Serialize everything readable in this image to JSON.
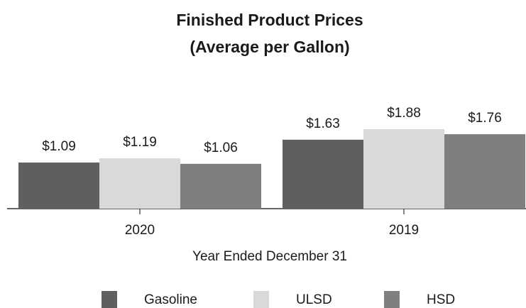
{
  "chart_data": {
    "type": "bar",
    "title": "Finished Product Prices",
    "subtitle": "(Average per Gallon)",
    "x_label": "Year Ended December 31",
    "categories": [
      "2020",
      "2019"
    ],
    "series": [
      {
        "name": "Gasoline",
        "color": "#5f5f5f",
        "values": [
          1.09,
          1.63
        ],
        "value_labels": [
          "$1.09",
          "$1.63"
        ]
      },
      {
        "name": "ULSD",
        "color": "#d9d9d9",
        "values": [
          1.19,
          1.88
        ],
        "value_labels": [
          "$1.19",
          "$1.88"
        ]
      },
      {
        "name": "HSD",
        "color": "#7f7f80",
        "values": [
          1.06,
          1.76
        ],
        "value_labels": [
          "$1.06",
          "$1.76"
        ]
      }
    ],
    "legend": "bottom"
  }
}
